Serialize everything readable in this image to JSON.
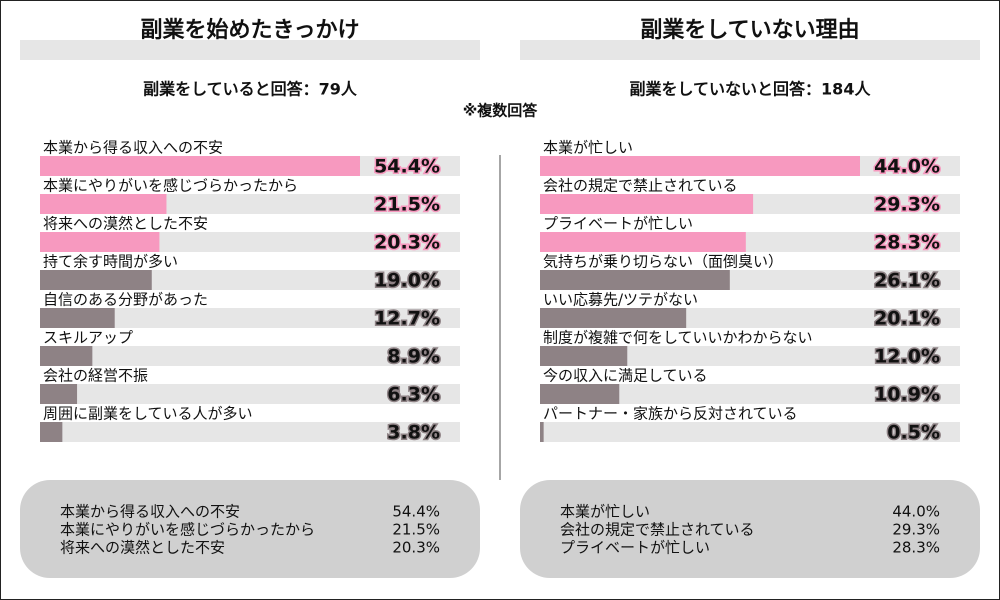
{
  "note": "※複数回答",
  "chart_data": [
    {
      "type": "bar",
      "title": "副業を始めたきっかけ",
      "subtitle": "副業をしていると回答：79人",
      "categories": [
        "本業から得る収入への不安",
        "本業にやりがいを感じづらかったから",
        "将来への漠然とした不安",
        "持て余す時間が多い",
        "自信のある分野があった",
        "スキルアップ",
        "会社の経営不振",
        "周囲に副業をしている人が多い"
      ],
      "values": [
        54.4,
        21.5,
        20.3,
        19.0,
        12.7,
        8.9,
        6.3,
        3.8
      ],
      "value_labels": [
        "54.4%",
        "21.5%",
        "20.3%",
        "19.0%",
        "12.7%",
        "8.9%",
        "6.3%",
        "3.8%"
      ],
      "colors": [
        "#f799bf",
        "#f799bf",
        "#f799bf",
        "#8e8285",
        "#8e8285",
        "#8e8285",
        "#8e8285",
        "#8e8285"
      ],
      "xlim": [
        0,
        71.4
      ]
    },
    {
      "type": "bar",
      "title": "副業をしていない理由",
      "subtitle": "副業をしていないと回答：184人",
      "categories": [
        "本業が忙しい",
        "会社の規定で禁止されている",
        "プライベートが忙しい",
        "気持ちが乗り切らない（面倒臭い）",
        "いい応募先/ツテがない",
        "制度が複雑で何をしていいかわからない",
        "今の収入に満足している",
        "パートナー・家族から反対されている"
      ],
      "values": [
        44.0,
        29.3,
        28.3,
        26.1,
        20.1,
        12.0,
        10.9,
        0.5
      ],
      "value_labels": [
        "44.0%",
        "29.3%",
        "28.3%",
        "26.1%",
        "20.1%",
        "12.0%",
        "10.9%",
        "0.5%"
      ],
      "colors": [
        "#f799bf",
        "#f799bf",
        "#f799bf",
        "#8e8285",
        "#8e8285",
        "#8e8285",
        "#8e8285",
        "#8e8285"
      ],
      "xlim": [
        0,
        57.75
      ]
    }
  ]
}
